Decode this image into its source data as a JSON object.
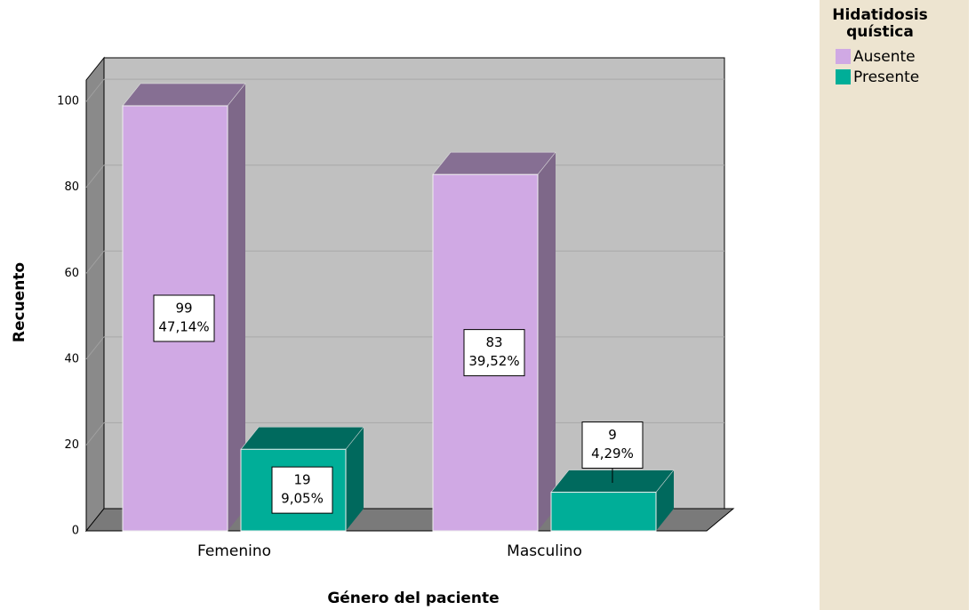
{
  "chart_data": {
    "type": "bar3d",
    "x_label": "Género del paciente",
    "y_label": "Recuento",
    "categories": [
      "Femenino",
      "Masculino"
    ],
    "legend_title": "Hidatidosis quística",
    "series": [
      {
        "name": "Ausente",
        "color": "#d0a9e4",
        "top_color": "#866f93",
        "side_color": "#7e6889",
        "values": [
          99,
          83
        ],
        "percent_labels": [
          "47,14%",
          "39,52%"
        ]
      },
      {
        "name": "Presente",
        "color": "#00ae98",
        "top_color": "#006a5e",
        "side_color": "#00695d",
        "values": [
          19,
          9
        ],
        "percent_labels": [
          "9,05%",
          "4,29%"
        ]
      }
    ],
    "ylim": [
      0,
      105
    ],
    "yticks": [
      0,
      20,
      40,
      60,
      80,
      100
    ],
    "grid": true
  }
}
